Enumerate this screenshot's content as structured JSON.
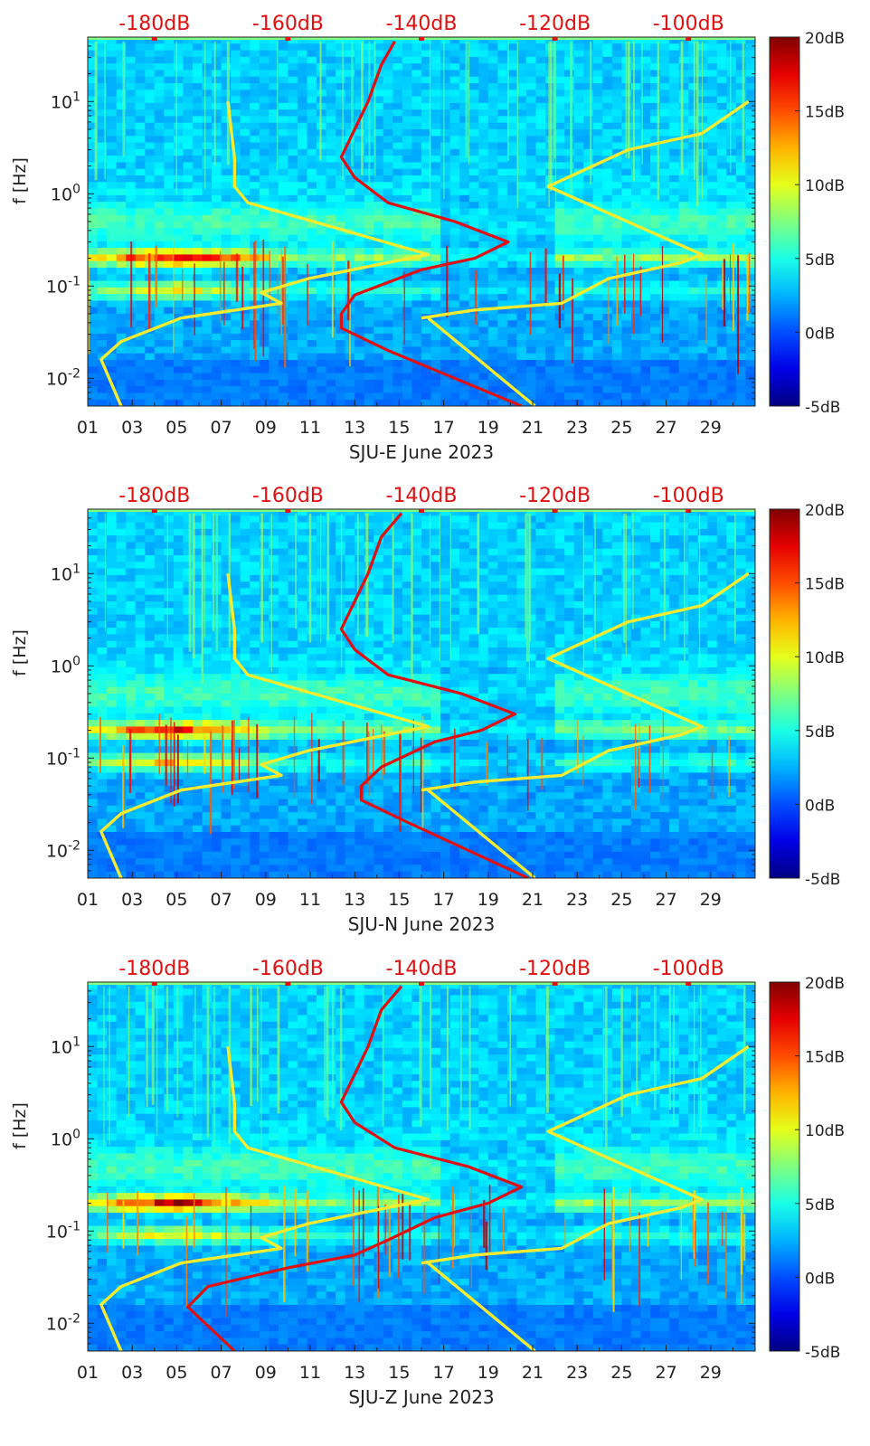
{
  "chart_data": [
    {
      "type": "heatmap",
      "title": "",
      "xlabel": "SJU-E June 2023",
      "ylabel": "f [Hz]",
      "x_ticks": [
        "01",
        "03",
        "05",
        "07",
        "09",
        "11",
        "13",
        "15",
        "17",
        "19",
        "21",
        "23",
        "25",
        "27",
        "29"
      ],
      "x_range_days": [
        1,
        31
      ],
      "y_scale": "log",
      "y_range_hz": [
        0.005,
        50
      ],
      "y_ticks": [
        {
          "value": 0.01,
          "base": "10",
          "exp": "-2"
        },
        {
          "value": 0.1,
          "base": "10",
          "exp": "-1"
        },
        {
          "value": 1,
          "base": "10",
          "exp": "0"
        },
        {
          "value": 10,
          "base": "10",
          "exp": "1"
        }
      ],
      "top_axis_labels": [
        "-180dB",
        "-160dB",
        "-140dB",
        "-120dB",
        "-100dB"
      ],
      "top_axis_range_db": [
        -190,
        -90
      ],
      "colorbar": {
        "min": -5,
        "max": 20,
        "ticks": [
          "20dB",
          "15dB",
          "10dB",
          "5dB",
          "0dB",
          "-5dB"
        ],
        "colormap": "jet"
      },
      "microseism_bands_hz": [
        {
          "f": 0.2,
          "strength": 0.9
        },
        {
          "f": 0.09,
          "strength": 0.5
        }
      ],
      "series": [
        {
          "name": "median PSD",
          "color": "#e01010",
          "points": [
            [
              -125,
              0.005
            ],
            [
              -135,
              0.01
            ],
            [
              -145,
              0.02
            ],
            [
              -152,
              0.035
            ],
            [
              -152,
              0.05
            ],
            [
              -150,
              0.08
            ],
            [
              -140,
              0.15
            ],
            [
              -132,
              0.2
            ],
            [
              -127,
              0.3
            ],
            [
              -135,
              0.5
            ],
            [
              -145,
              0.8
            ],
            [
              -150,
              1.5
            ],
            [
              -152,
              2.5
            ],
            [
              -150,
              5
            ],
            [
              -148,
              10
            ],
            [
              -146,
              25
            ],
            [
              -144,
              45
            ]
          ]
        },
        {
          "name": "NLNM",
          "color": "#f5ec30",
          "points": [
            [
              -185,
              0.005
            ],
            [
              -188,
              0.016
            ],
            [
              -185,
              0.025
            ],
            [
              -176,
              0.045
            ],
            [
              -161,
              0.065
            ],
            [
              -164,
              0.085
            ],
            [
              -157,
              0.12
            ],
            [
              -139,
              0.22
            ],
            [
              -166,
              0.8
            ],
            [
              -168,
              1.2
            ],
            [
              -168,
              2.4
            ],
            [
              -169,
              10
            ]
          ]
        },
        {
          "name": "NHNM",
          "color": "#f5ec30",
          "points": [
            [
              -140,
              0.045
            ],
            [
              -132,
              0.055
            ],
            [
              -119,
              0.065
            ],
            [
              -112,
              0.12
            ],
            [
              -101,
              0.18
            ],
            [
              -98,
              0.22
            ],
            [
              -121,
              1.2
            ],
            [
              -109,
              3
            ],
            [
              -98,
              4.5
            ],
            [
              -91,
              10
            ]
          ]
        },
        {
          "name": "NLNM low-f",
          "color": "#f5ec30",
          "points": [
            [
              -139,
              0.045
            ],
            [
              -123,
              0.005
            ]
          ]
        }
      ]
    },
    {
      "type": "heatmap",
      "title": "",
      "xlabel": "SJU-N June 2023",
      "ylabel": "f [Hz]",
      "x_ticks": [
        "01",
        "03",
        "05",
        "07",
        "09",
        "11",
        "13",
        "15",
        "17",
        "19",
        "21",
        "23",
        "25",
        "27",
        "29"
      ],
      "x_range_days": [
        1,
        31
      ],
      "y_scale": "log",
      "y_range_hz": [
        0.005,
        50
      ],
      "y_ticks": [
        {
          "value": 0.01,
          "base": "10",
          "exp": "-2"
        },
        {
          "value": 0.1,
          "base": "10",
          "exp": "-1"
        },
        {
          "value": 1,
          "base": "10",
          "exp": "0"
        },
        {
          "value": 10,
          "base": "10",
          "exp": "1"
        }
      ],
      "top_axis_labels": [
        "-180dB",
        "-160dB",
        "-140dB",
        "-120dB",
        "-100dB"
      ],
      "top_axis_range_db": [
        -190,
        -90
      ],
      "colorbar": {
        "min": -5,
        "max": 20,
        "ticks": [
          "20dB",
          "15dB",
          "10dB",
          "5dB",
          "0dB",
          "-5dB"
        ],
        "colormap": "jet"
      },
      "microseism_bands_hz": [
        {
          "f": 0.2,
          "strength": 0.85
        },
        {
          "f": 0.09,
          "strength": 0.55
        }
      ],
      "series": [
        {
          "name": "median PSD",
          "color": "#e01010",
          "points": [
            [
              -124,
              0.005
            ],
            [
              -133,
              0.01
            ],
            [
              -142,
              0.02
            ],
            [
              -149,
              0.035
            ],
            [
              -149,
              0.05
            ],
            [
              -146,
              0.08
            ],
            [
              -138,
              0.15
            ],
            [
              -131,
              0.2
            ],
            [
              -126,
              0.3
            ],
            [
              -134,
              0.5
            ],
            [
              -145,
              0.8
            ],
            [
              -150,
              1.5
            ],
            [
              -152,
              2.5
            ],
            [
              -150,
              5
            ],
            [
              -148,
              10
            ],
            [
              -146,
              25
            ],
            [
              -143,
              45
            ]
          ]
        },
        {
          "name": "NLNM",
          "color": "#f5ec30",
          "points": [
            [
              -185,
              0.005
            ],
            [
              -188,
              0.016
            ],
            [
              -185,
              0.025
            ],
            [
              -176,
              0.045
            ],
            [
              -161,
              0.065
            ],
            [
              -164,
              0.085
            ],
            [
              -157,
              0.12
            ],
            [
              -139,
              0.22
            ],
            [
              -166,
              0.8
            ],
            [
              -168,
              1.2
            ],
            [
              -168,
              2.4
            ],
            [
              -169,
              10
            ]
          ]
        },
        {
          "name": "NHNM",
          "color": "#f5ec30",
          "points": [
            [
              -140,
              0.045
            ],
            [
              -132,
              0.055
            ],
            [
              -119,
              0.065
            ],
            [
              -112,
              0.12
            ],
            [
              -101,
              0.18
            ],
            [
              -98,
              0.22
            ],
            [
              -121,
              1.2
            ],
            [
              -109,
              3
            ],
            [
              -98,
              4.5
            ],
            [
              -91,
              10
            ]
          ]
        },
        {
          "name": "NLNM low-f",
          "color": "#f5ec30",
          "points": [
            [
              -139,
              0.045
            ],
            [
              -123,
              0.005
            ]
          ]
        }
      ]
    },
    {
      "type": "heatmap",
      "title": "",
      "xlabel": "SJU-Z June 2023",
      "ylabel": "f [Hz]",
      "x_ticks": [
        "01",
        "03",
        "05",
        "07",
        "09",
        "11",
        "13",
        "15",
        "17",
        "19",
        "21",
        "23",
        "25",
        "27",
        "29"
      ],
      "x_range_days": [
        1,
        31
      ],
      "y_scale": "log",
      "y_range_hz": [
        0.005,
        50
      ],
      "y_ticks": [
        {
          "value": 0.01,
          "base": "10",
          "exp": "-2"
        },
        {
          "value": 0.1,
          "base": "10",
          "exp": "-1"
        },
        {
          "value": 1,
          "base": "10",
          "exp": "0"
        },
        {
          "value": 10,
          "base": "10",
          "exp": "1"
        }
      ],
      "top_axis_labels": [
        "-180dB",
        "-160dB",
        "-140dB",
        "-120dB",
        "-100dB"
      ],
      "top_axis_range_db": [
        -190,
        -90
      ],
      "colorbar": {
        "min": -5,
        "max": 20,
        "ticks": [
          "20dB",
          "15dB",
          "10dB",
          "5dB",
          "0dB",
          "-5dB"
        ],
        "colormap": "jet"
      },
      "microseism_bands_hz": [
        {
          "f": 0.2,
          "strength": 0.9
        },
        {
          "f": 0.09,
          "strength": 0.5
        }
      ],
      "series": [
        {
          "name": "median PSD",
          "color": "#e01010",
          "points": [
            [
              -168,
              0.005
            ],
            [
              -175,
              0.015
            ],
            [
              -172,
              0.025
            ],
            [
              -160,
              0.04
            ],
            [
              -150,
              0.055
            ],
            [
              -145,
              0.08
            ],
            [
              -138,
              0.14
            ],
            [
              -130,
              0.2
            ],
            [
              -125,
              0.3
            ],
            [
              -133,
              0.5
            ],
            [
              -144,
              0.8
            ],
            [
              -150,
              1.5
            ],
            [
              -152,
              2.5
            ],
            [
              -150,
              5
            ],
            [
              -148,
              10
            ],
            [
              -146,
              25
            ],
            [
              -143,
              45
            ]
          ]
        },
        {
          "name": "NLNM",
          "color": "#f5ec30",
          "points": [
            [
              -185,
              0.005
            ],
            [
              -188,
              0.016
            ],
            [
              -185,
              0.025
            ],
            [
              -176,
              0.045
            ],
            [
              -161,
              0.065
            ],
            [
              -164,
              0.085
            ],
            [
              -157,
              0.12
            ],
            [
              -139,
              0.22
            ],
            [
              -166,
              0.8
            ],
            [
              -168,
              1.2
            ],
            [
              -168,
              2.4
            ],
            [
              -169,
              10
            ]
          ]
        },
        {
          "name": "NHNM",
          "color": "#f5ec30",
          "points": [
            [
              -140,
              0.045
            ],
            [
              -132,
              0.055
            ],
            [
              -119,
              0.065
            ],
            [
              -112,
              0.12
            ],
            [
              -101,
              0.18
            ],
            [
              -98,
              0.22
            ],
            [
              -121,
              1.2
            ],
            [
              -109,
              3
            ],
            [
              -98,
              4.5
            ],
            [
              -91,
              10
            ]
          ]
        },
        {
          "name": "NLNM low-f",
          "color": "#f5ec30",
          "points": [
            [
              -139,
              0.045
            ],
            [
              -123,
              0.005
            ]
          ]
        }
      ]
    }
  ]
}
